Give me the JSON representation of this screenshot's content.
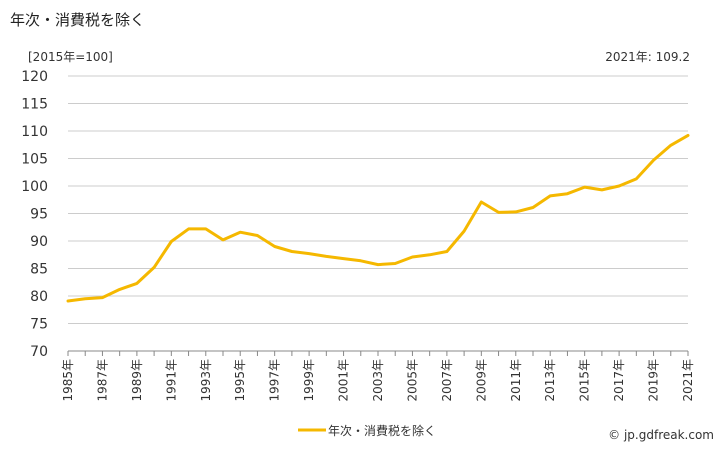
{
  "title": "年次・消費税を除く",
  "unit_label": "[2015年=100]",
  "latest_label": "2021年: 109.2",
  "credit": "© jp.gdfreak.com",
  "colors": {
    "series": "#f5b800",
    "grid": "#cccccc",
    "axis": "#888888"
  },
  "chart_data": {
    "type": "line",
    "title": "年次・消費税を除く",
    "ylabel": "[2015年=100]",
    "ylim": [
      70,
      120
    ],
    "yticks": [
      70,
      75,
      80,
      85,
      90,
      95,
      100,
      105,
      110,
      115,
      120
    ],
    "grid": true,
    "legend_position": "bottom-center",
    "x": [
      "1985年",
      "1986年",
      "1987年",
      "1988年",
      "1989年",
      "1990年",
      "1991年",
      "1992年",
      "1993年",
      "1994年",
      "1995年",
      "1996年",
      "1997年",
      "1998年",
      "1999年",
      "2000年",
      "2001年",
      "2002年",
      "2003年",
      "2004年",
      "2005年",
      "2006年",
      "2007年",
      "2008年",
      "2009年",
      "2010年",
      "2011年",
      "2012年",
      "2013年",
      "2014年",
      "2015年",
      "2016年",
      "2017年",
      "2018年",
      "2019年",
      "2020年",
      "2021年"
    ],
    "xtick_labels": [
      "1985年",
      "1987年",
      "1989年",
      "1991年",
      "1993年",
      "1995年",
      "1997年",
      "1999年",
      "2001年",
      "2003年",
      "2005年",
      "2007年",
      "2009年",
      "2011年",
      "2013年",
      "2015年",
      "2017年",
      "2019年",
      "2021年"
    ],
    "series": [
      {
        "name": "年次・消費税を除く",
        "color": "#f5b800",
        "values": [
          79.1,
          79.5,
          79.7,
          81.2,
          82.3,
          85.2,
          89.9,
          92.2,
          92.2,
          90.2,
          91.6,
          91.0,
          89.0,
          88.1,
          87.7,
          87.2,
          86.8,
          86.4,
          85.7,
          85.9,
          87.1,
          87.5,
          88.1,
          91.8,
          97.1,
          95.2,
          95.3,
          96.1,
          98.2,
          98.6,
          99.8,
          99.3,
          100.0,
          101.3,
          104.7,
          107.4,
          109.2
        ]
      }
    ]
  }
}
